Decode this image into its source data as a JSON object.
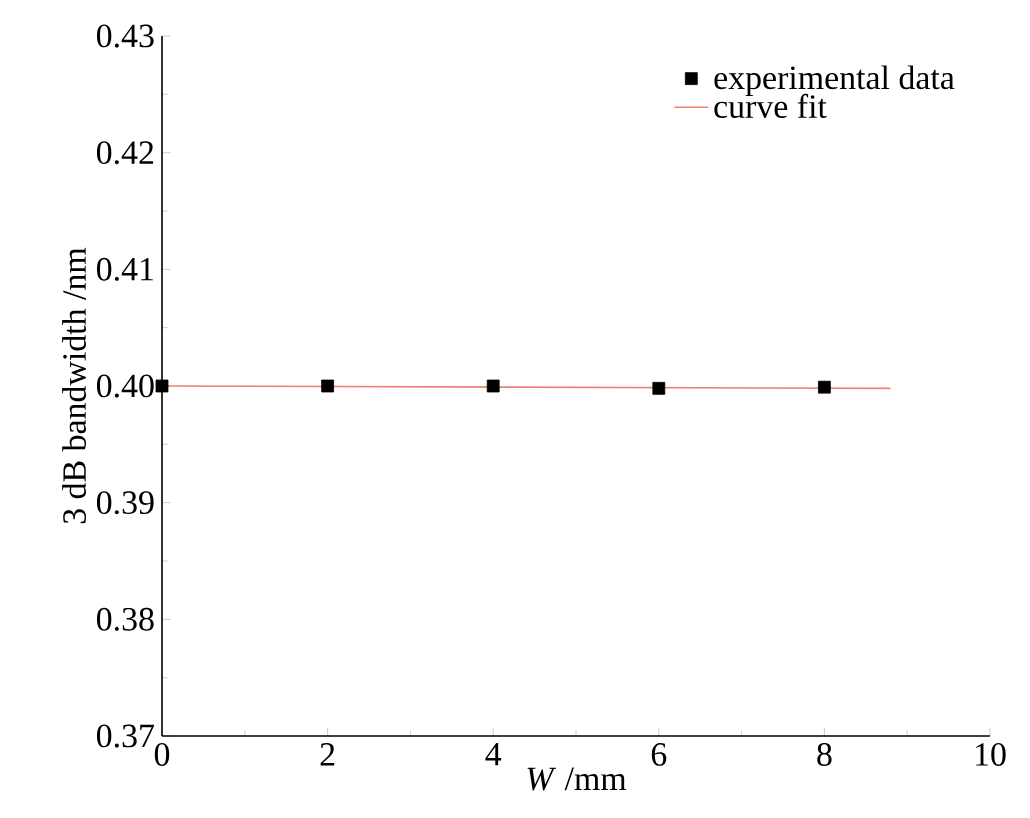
{
  "chart_data": {
    "type": "scatter",
    "xlabel": "*W* /mm",
    "ylabel": "3 dB bandwidth /nm",
    "xlim": [
      0,
      10
    ],
    "xticks": [
      0,
      2,
      4,
      6,
      8,
      10
    ],
    "ylim": [
      0.37,
      0.43
    ],
    "yticks": [
      0.37,
      0.38,
      0.39,
      {
        "value": 0.4,
        "label": "0.40"
      },
      0.41,
      0.42,
      0.43
    ],
    "legend": "top right",
    "grid": false,
    "series": [
      {
        "name": "experimental data",
        "marker": "square",
        "color": "#000000",
        "x": [
          0,
          2,
          4,
          6,
          8
        ],
        "values": [
          0.4,
          0.4,
          0.4,
          0.3998,
          0.3999
        ]
      },
      {
        "name": "curve fit",
        "type": "line",
        "marker": "none",
        "line_style": "solid",
        "color": "#f08070",
        "x": [
          0,
          8.8
        ],
        "values": [
          0.4,
          0.3998
        ]
      }
    ]
  }
}
